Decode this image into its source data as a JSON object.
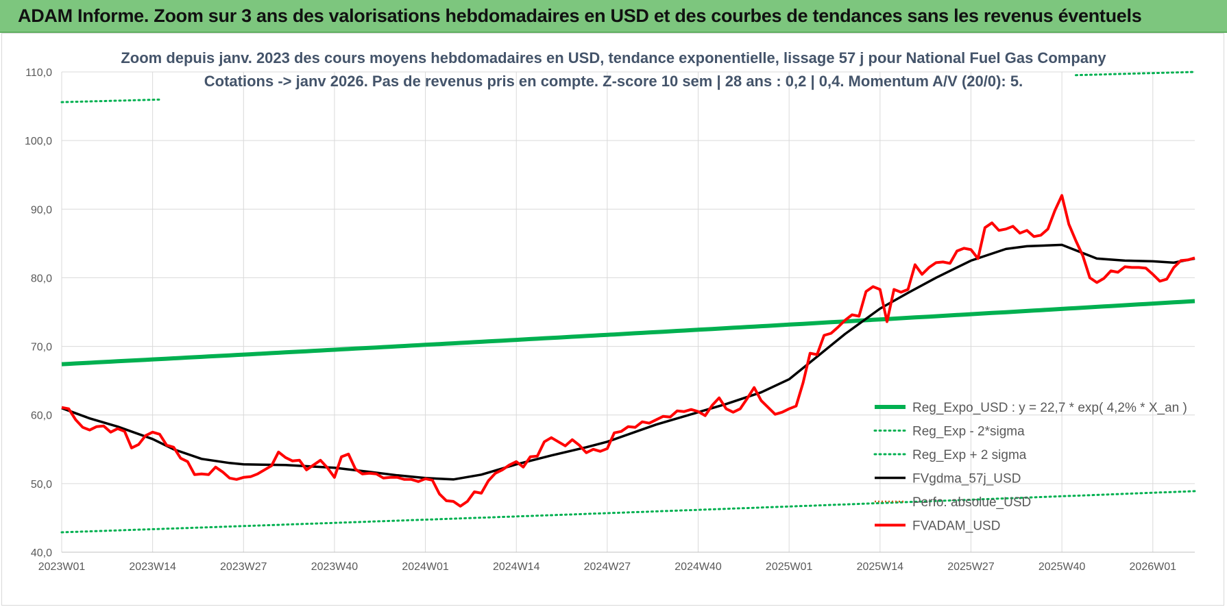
{
  "header": {
    "title": "ADAM Informe. Zoom sur 3 ans des valorisations hebdomadaires en USD et des courbes de tendances sans les revenus éventuels"
  },
  "chart_data": {
    "type": "line",
    "title_line1": "Zoom depuis janv. 2023 des cours moyens hebdomadaires en USD, tendance exponentielle, lissage 57 j pour National Fuel Gas Company",
    "title_line2": "Cotations -> janv 2026. Pas de revenus pris en compte. Z-score 10 sem | 28 ans : 0,2 | 0,4. Momentum A/V (20/0): 5.",
    "xlabel": "",
    "ylabel": "",
    "ylim": [
      40,
      110
    ],
    "y_ticks": [
      "40,0",
      "50,0",
      "60,0",
      "70,0",
      "80,0",
      "90,0",
      "100,0",
      "110,0"
    ],
    "x_ticks": [
      "2023W01",
      "2023W14",
      "2023W27",
      "2023W40",
      "2024W01",
      "2024W14",
      "2024W27",
      "2024W40",
      "2025W01",
      "2025W14",
      "2025W27",
      "2025W40",
      "2026W01"
    ],
    "x_tick_index": [
      0,
      13,
      26,
      39,
      52,
      65,
      78,
      91,
      104,
      117,
      130,
      143,
      156
    ],
    "x_count": 163,
    "grid": true,
    "legend_position": "right",
    "colors": {
      "reg_expo": "#00b050",
      "sigma": "#00b050",
      "fvgdma": "#000000",
      "perfo": "#c55a11",
      "fvadam": "#ff0000",
      "grid": "#d9d9d9"
    },
    "legend": [
      {
        "key": "reg_expo",
        "label": "Reg_Expo_USD : y = 22,7 * exp( 4,2% *  X_an )"
      },
      {
        "key": "reg_minus",
        "label": "Reg_Exp - 2*sigma"
      },
      {
        "key": "reg_plus",
        "label": "Reg_Exp + 2 sigma"
      },
      {
        "key": "fvgdma",
        "label": "FVgdma_57j_USD"
      },
      {
        "key": "perfo",
        "label": "Perfo. absolue_USD"
      },
      {
        "key": "fvadam",
        "label": "FVADAM_USD"
      }
    ],
    "series": [
      {
        "name": "Reg_Expo_USD",
        "start": 67.4,
        "end": 76.6
      },
      {
        "name": "Reg_Exp - 2*sigma",
        "start": 42.9,
        "end": 48.9
      },
      {
        "name": "Reg_Exp + 2 sigma",
        "start": 105.6,
        "end": 110.0,
        "visible_ranges": [
          [
            0,
            14
          ],
          [
            145,
            162
          ]
        ]
      },
      {
        "name": "FVgdma_57j_USD",
        "points": [
          [
            0,
            61.0
          ],
          [
            4,
            59.5
          ],
          [
            8,
            58.3
          ],
          [
            13,
            56.5
          ],
          [
            16,
            55.0
          ],
          [
            20,
            53.6
          ],
          [
            24,
            53.0
          ],
          [
            26,
            52.8
          ],
          [
            32,
            52.7
          ],
          [
            39,
            52.3
          ],
          [
            44,
            51.7
          ],
          [
            48,
            51.2
          ],
          [
            52,
            50.8
          ],
          [
            56,
            50.6
          ],
          [
            60,
            51.3
          ],
          [
            65,
            52.8
          ],
          [
            70,
            54.1
          ],
          [
            75,
            55.3
          ],
          [
            78,
            56.1
          ],
          [
            85,
            58.6
          ],
          [
            91,
            60.4
          ],
          [
            95,
            61.6
          ],
          [
            100,
            63.3
          ],
          [
            104,
            65.2
          ],
          [
            108,
            68.5
          ],
          [
            112,
            71.8
          ],
          [
            117,
            75.5
          ],
          [
            121,
            77.8
          ],
          [
            125,
            80.0
          ],
          [
            130,
            82.5
          ],
          [
            135,
            84.2
          ],
          [
            138,
            84.6
          ],
          [
            143,
            84.8
          ],
          [
            145,
            84.0
          ],
          [
            148,
            82.8
          ],
          [
            152,
            82.5
          ],
          [
            156,
            82.4
          ],
          [
            159,
            82.2
          ],
          [
            162,
            82.8
          ]
        ]
      },
      {
        "name": "Perfo. absolue_USD",
        "points": []
      },
      {
        "name": "FVADAM_USD",
        "points": [
          [
            0,
            61.1
          ],
          [
            1,
            60.9
          ],
          [
            2,
            59.3
          ],
          [
            3,
            58.2
          ],
          [
            4,
            57.8
          ],
          [
            5,
            58.3
          ],
          [
            6,
            58.4
          ],
          [
            7,
            57.5
          ],
          [
            8,
            58.0
          ],
          [
            9,
            57.6
          ],
          [
            10,
            55.2
          ],
          [
            11,
            55.7
          ],
          [
            12,
            57.0
          ],
          [
            13,
            57.5
          ],
          [
            14,
            57.2
          ],
          [
            15,
            55.6
          ],
          [
            16,
            55.3
          ],
          [
            17,
            53.7
          ],
          [
            18,
            53.2
          ],
          [
            19,
            51.3
          ],
          [
            20,
            51.4
          ],
          [
            21,
            51.3
          ],
          [
            22,
            52.4
          ],
          [
            23,
            51.7
          ],
          [
            24,
            50.8
          ],
          [
            25,
            50.6
          ],
          [
            26,
            50.9
          ],
          [
            27,
            51.0
          ],
          [
            28,
            51.4
          ],
          [
            29,
            52.0
          ],
          [
            30,
            52.6
          ],
          [
            31,
            54.6
          ],
          [
            32,
            53.8
          ],
          [
            33,
            53.3
          ],
          [
            34,
            53.4
          ],
          [
            35,
            52.0
          ],
          [
            36,
            52.7
          ],
          [
            37,
            53.4
          ],
          [
            38,
            52.3
          ],
          [
            39,
            50.9
          ],
          [
            40,
            53.9
          ],
          [
            41,
            54.3
          ],
          [
            42,
            52.1
          ],
          [
            43,
            51.4
          ],
          [
            44,
            51.5
          ],
          [
            45,
            51.4
          ],
          [
            46,
            50.8
          ],
          [
            47,
            50.9
          ],
          [
            48,
            50.9
          ],
          [
            49,
            50.6
          ],
          [
            50,
            50.6
          ],
          [
            51,
            50.3
          ],
          [
            52,
            50.7
          ],
          [
            53,
            50.5
          ],
          [
            54,
            48.5
          ],
          [
            55,
            47.5
          ],
          [
            56,
            47.4
          ],
          [
            57,
            46.7
          ],
          [
            58,
            47.4
          ],
          [
            59,
            48.8
          ],
          [
            60,
            48.6
          ],
          [
            61,
            50.4
          ],
          [
            62,
            51.5
          ],
          [
            63,
            52.0
          ],
          [
            64,
            52.7
          ],
          [
            65,
            53.2
          ],
          [
            66,
            52.4
          ],
          [
            67,
            53.9
          ],
          [
            68,
            54.0
          ],
          [
            69,
            56.1
          ],
          [
            70,
            56.7
          ],
          [
            71,
            56.1
          ],
          [
            72,
            55.5
          ],
          [
            73,
            56.4
          ],
          [
            74,
            55.6
          ],
          [
            75,
            54.5
          ],
          [
            76,
            55.0
          ],
          [
            77,
            54.7
          ],
          [
            78,
            55.1
          ],
          [
            79,
            57.4
          ],
          [
            80,
            57.6
          ],
          [
            81,
            58.3
          ],
          [
            82,
            58.2
          ],
          [
            83,
            59.0
          ],
          [
            84,
            58.8
          ],
          [
            85,
            59.3
          ],
          [
            86,
            59.8
          ],
          [
            87,
            59.7
          ],
          [
            88,
            60.6
          ],
          [
            89,
            60.5
          ],
          [
            90,
            60.8
          ],
          [
            91,
            60.5
          ],
          [
            92,
            59.9
          ],
          [
            93,
            61.4
          ],
          [
            94,
            62.5
          ],
          [
            95,
            60.9
          ],
          [
            96,
            60.4
          ],
          [
            97,
            60.9
          ],
          [
            98,
            62.4
          ],
          [
            99,
            64.0
          ],
          [
            100,
            62.1
          ],
          [
            101,
            61.1
          ],
          [
            102,
            60.1
          ],
          [
            103,
            60.4
          ],
          [
            104,
            60.9
          ],
          [
            105,
            61.3
          ],
          [
            106,
            64.7
          ],
          [
            107,
            69.0
          ],
          [
            108,
            68.8
          ],
          [
            109,
            71.6
          ],
          [
            110,
            71.9
          ],
          [
            111,
            72.8
          ],
          [
            112,
            73.8
          ],
          [
            113,
            74.6
          ],
          [
            114,
            74.4
          ],
          [
            115,
            78.0
          ],
          [
            116,
            78.7
          ],
          [
            117,
            78.3
          ],
          [
            118,
            73.6
          ],
          [
            119,
            78.3
          ],
          [
            120,
            77.9
          ],
          [
            121,
            78.3
          ],
          [
            122,
            81.9
          ],
          [
            123,
            80.5
          ],
          [
            124,
            81.5
          ],
          [
            125,
            82.2
          ],
          [
            126,
            82.3
          ],
          [
            127,
            82.1
          ],
          [
            128,
            83.9
          ],
          [
            129,
            84.3
          ],
          [
            130,
            84.1
          ],
          [
            131,
            82.8
          ],
          [
            132,
            87.3
          ],
          [
            133,
            88.0
          ],
          [
            134,
            86.9
          ],
          [
            135,
            87.1
          ],
          [
            136,
            87.5
          ],
          [
            137,
            86.5
          ],
          [
            138,
            86.9
          ],
          [
            139,
            86.0
          ],
          [
            140,
            86.2
          ],
          [
            141,
            87.1
          ],
          [
            142,
            89.8
          ],
          [
            143,
            92.0
          ],
          [
            144,
            87.8
          ],
          [
            145,
            85.4
          ],
          [
            146,
            83.2
          ],
          [
            147,
            80.0
          ],
          [
            148,
            79.3
          ],
          [
            149,
            79.9
          ],
          [
            150,
            81.0
          ],
          [
            151,
            80.8
          ],
          [
            152,
            81.6
          ],
          [
            153,
            81.5
          ],
          [
            154,
            81.5
          ],
          [
            155,
            81.4
          ],
          [
            156,
            80.5
          ],
          [
            157,
            79.5
          ],
          [
            158,
            79.8
          ],
          [
            159,
            81.5
          ],
          [
            160,
            82.5
          ],
          [
            161,
            82.6
          ],
          [
            162,
            82.9
          ]
        ]
      }
    ]
  }
}
